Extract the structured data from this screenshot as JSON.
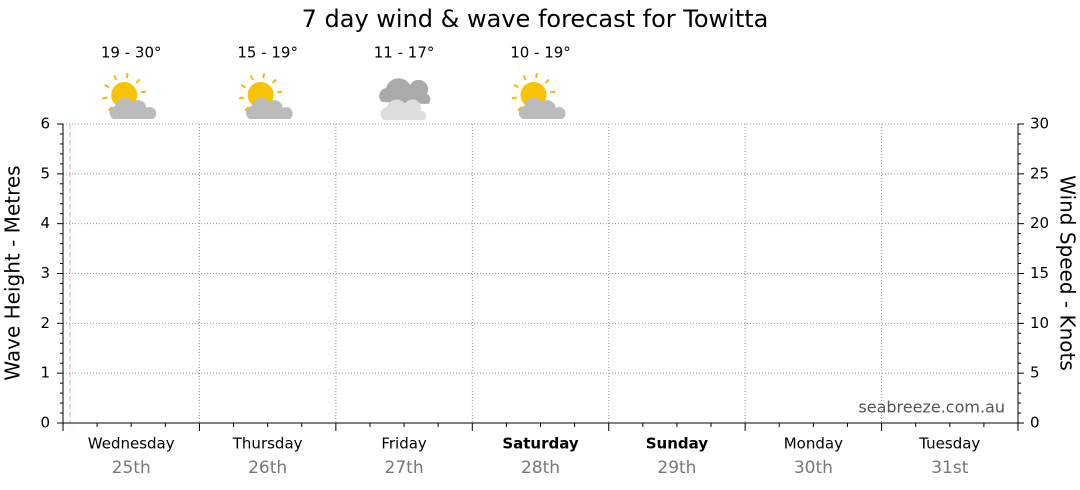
{
  "chart_data": {
    "type": "line",
    "title": "7 day wind & wave forecast for Towitta",
    "ylabel": "Wave Height - Metres",
    "y2label": "Wind Speed - Knots",
    "ylim": [
      0,
      6
    ],
    "yticks": [
      0,
      1,
      2,
      3,
      4,
      5,
      6
    ],
    "y2lim": [
      0,
      30
    ],
    "y2ticks": [
      0,
      5,
      10,
      15,
      20,
      25,
      30
    ],
    "categories": [
      "Wednesday",
      "Thursday",
      "Friday",
      "Saturday",
      "Sunday",
      "Monday",
      "Tuesday"
    ],
    "dates": [
      "25th",
      "26th",
      "27th",
      "28th",
      "29th",
      "30th",
      "31st"
    ],
    "bold": [
      false,
      false,
      false,
      true,
      true,
      false,
      false
    ],
    "temperatures": [
      "19 - 30°",
      "15 - 19°",
      "11 - 17°",
      "10 - 19°"
    ],
    "icons": [
      "sun-cloud",
      "sun-cloud",
      "cloud",
      "sun-cloud"
    ],
    "grid": true,
    "watermark": "seabreeze.com.au",
    "series": []
  }
}
